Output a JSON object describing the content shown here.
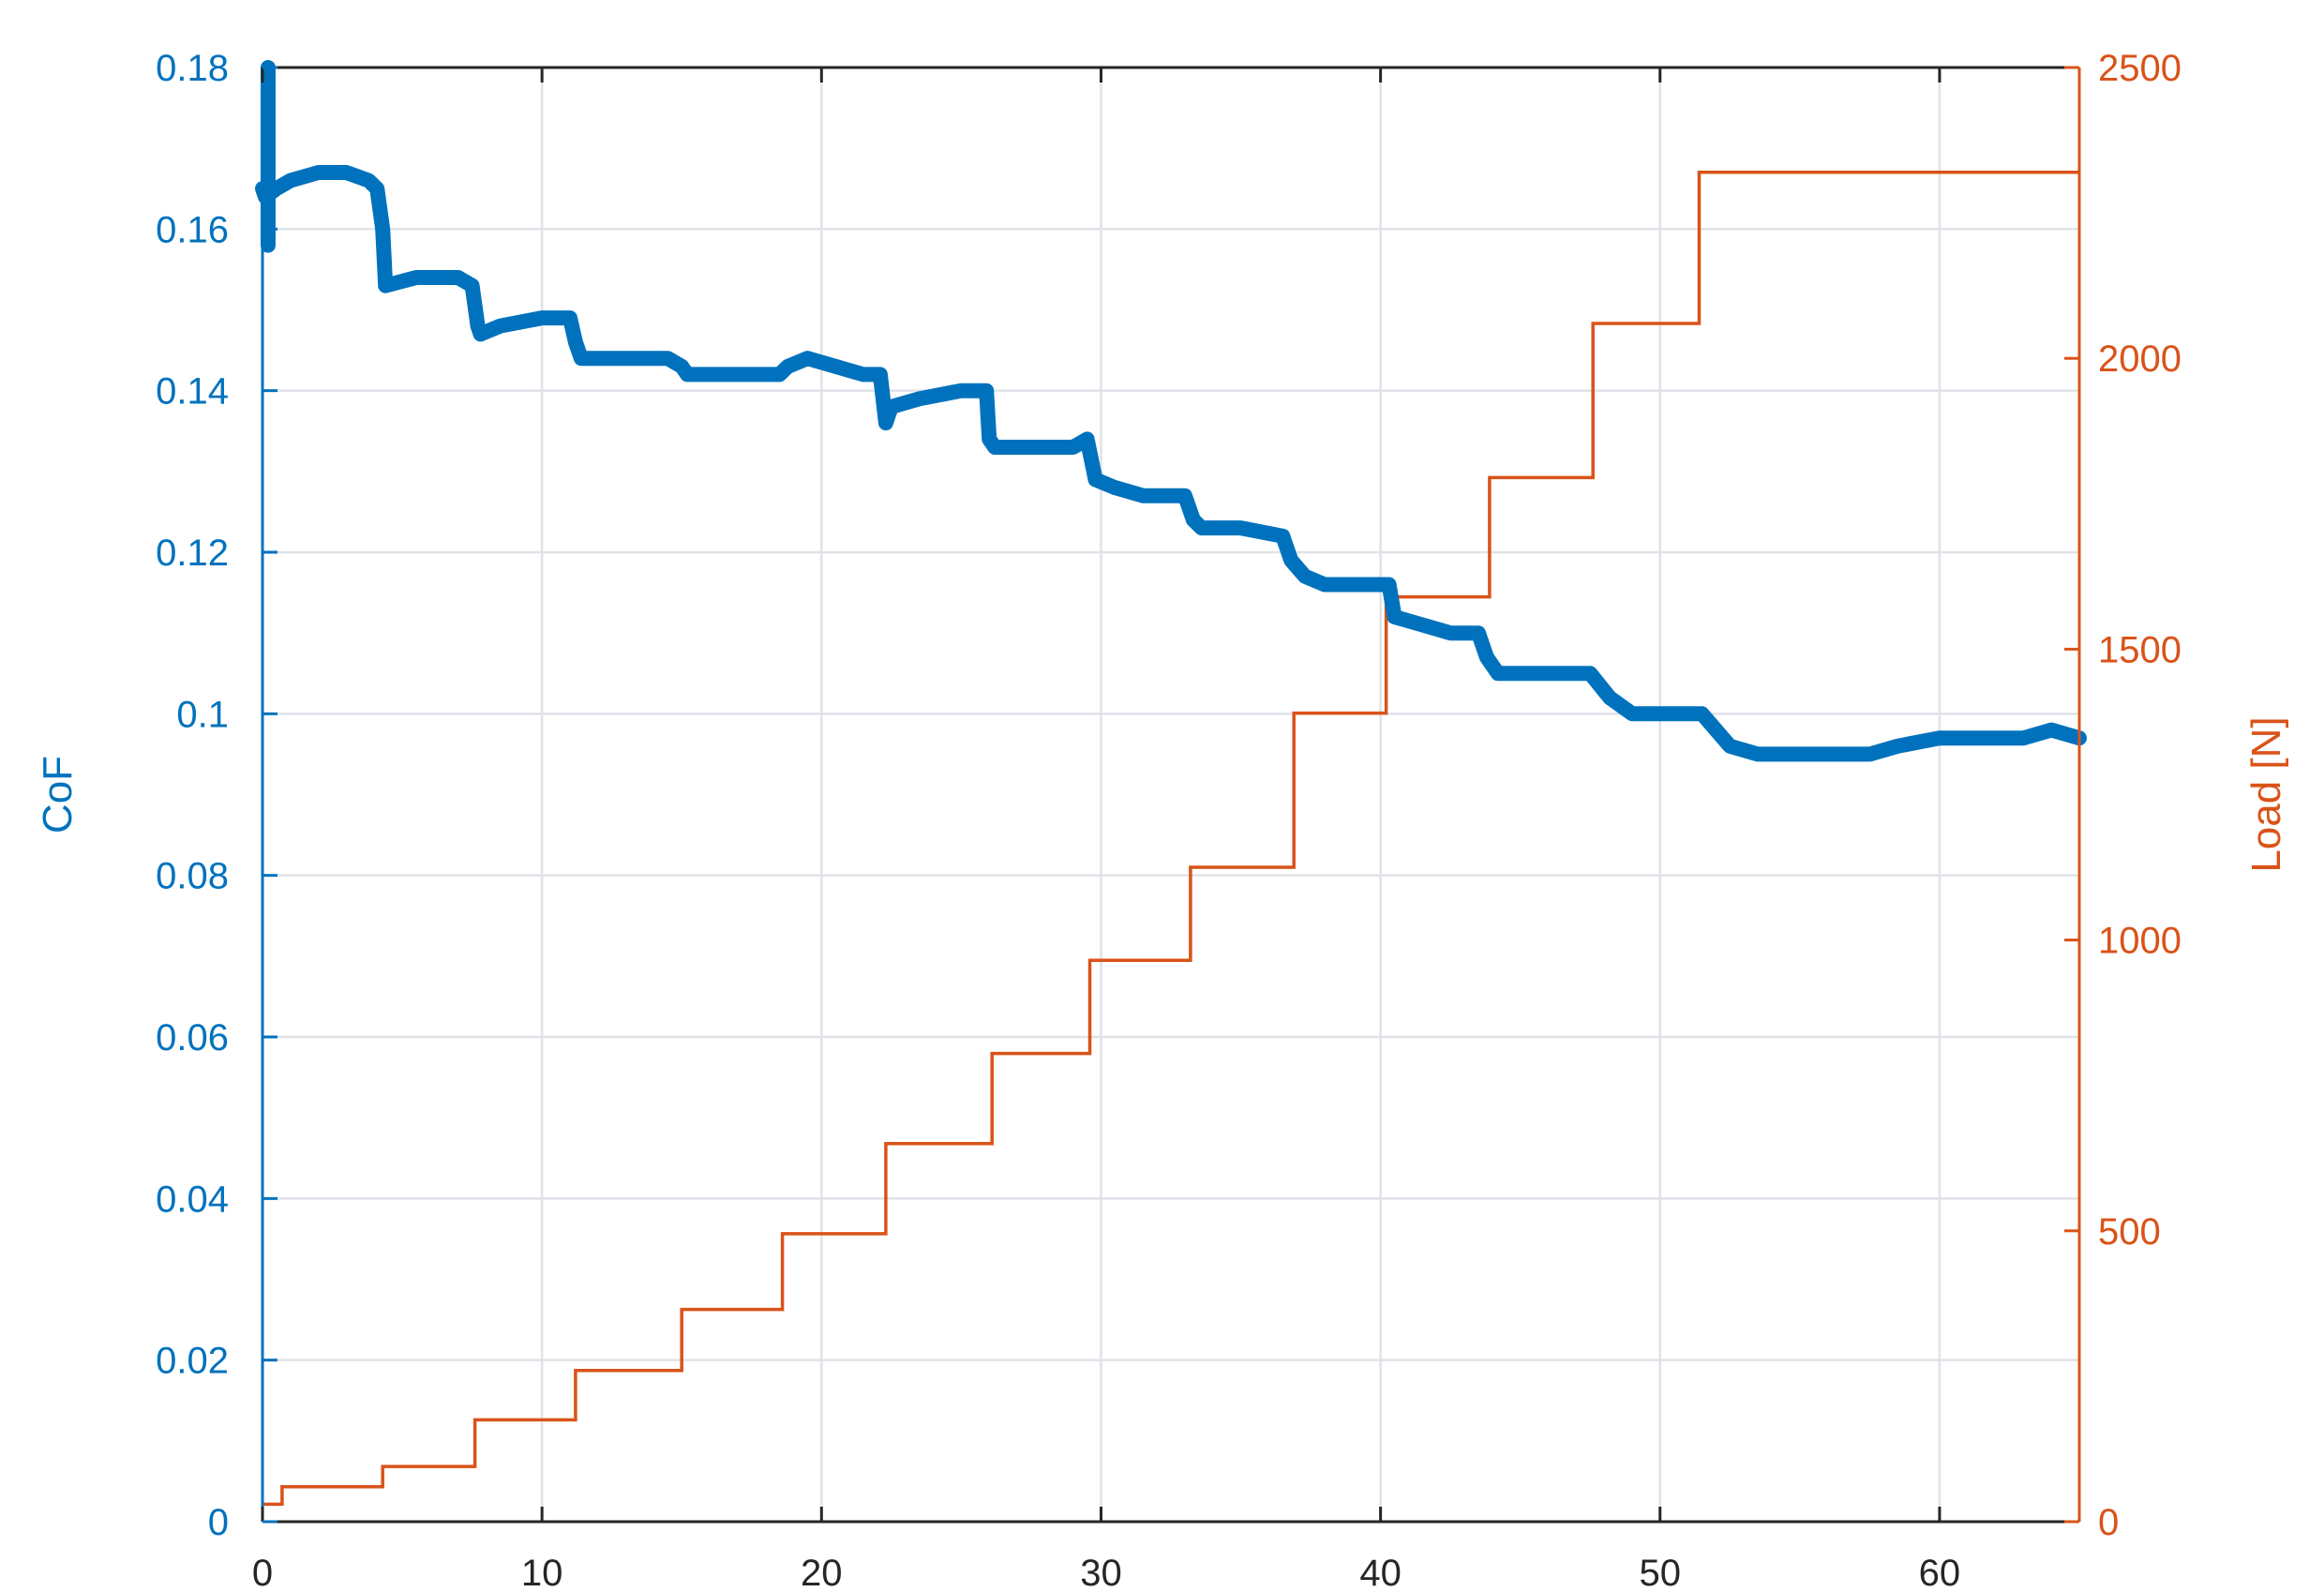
{
  "chart_data": {
    "type": "line",
    "x_ticks": [
      "0",
      "10",
      "20",
      "30",
      "40",
      "50",
      "60"
    ],
    "x_tick_values": [
      0,
      10,
      20,
      30,
      40,
      50,
      60
    ],
    "xlim": [
      0,
      65
    ],
    "grid": true,
    "left_axis": {
      "label": "CoF",
      "color": "#0072BD",
      "ylim": [
        0,
        0.18
      ],
      "ticks": [
        "0",
        "0.02",
        "0.04",
        "0.06",
        "0.08",
        "0.1",
        "0.12",
        "0.14",
        "0.16",
        "0.18"
      ],
      "tick_values": [
        0,
        0.02,
        0.04,
        0.06,
        0.08,
        0.1,
        0.12,
        0.14,
        0.16,
        0.18
      ]
    },
    "right_axis": {
      "label": "Load [N]",
      "color": "#D95319",
      "ylim": [
        0,
        2500
      ],
      "ticks": [
        "0",
        "500",
        "1000",
        "1500",
        "2000",
        "2500"
      ],
      "tick_values": [
        0,
        500,
        1000,
        1500,
        2000,
        2500
      ]
    },
    "series": [
      {
        "axis": "left",
        "color": "#0072BD",
        "style": "thick-markers",
        "x": [
          0.0,
          0.1,
          0.5,
          1.0,
          2.0,
          3.0,
          3.8,
          4.1,
          4.3,
          4.4,
          5.5,
          7.0,
          7.5,
          7.7,
          7.8,
          8.5,
          10.0,
          11.0,
          11.2,
          11.4,
          12.5,
          14.5,
          15.0,
          15.2,
          17.0,
          18.5,
          18.8,
          19.5,
          20.5,
          21.5,
          22.1,
          22.3,
          22.5,
          23.5,
          25.0,
          25.9,
          26.0,
          26.2,
          27.5,
          29.0,
          29.5,
          29.8,
          30.5,
          31.5,
          33.0,
          33.3,
          33.6,
          35.0,
          36.5,
          36.8,
          37.3,
          38.0,
          39.5,
          40.3,
          40.5,
          41.5,
          42.5,
          43.5,
          43.8,
          44.2,
          45.5,
          47.5,
          48.2,
          49.0,
          51.0,
          51.5,
          52.5,
          53.5,
          55.0,
          56.5,
          57.5,
          58.5,
          60.0,
          61.5,
          63.0,
          64.0,
          65.0
        ],
        "y": [
          0.165,
          0.164,
          0.165,
          0.166,
          0.167,
          0.167,
          0.166,
          0.165,
          0.16,
          0.153,
          0.154,
          0.154,
          0.153,
          0.148,
          0.147,
          0.148,
          0.149,
          0.149,
          0.146,
          0.144,
          0.144,
          0.144,
          0.143,
          0.142,
          0.142,
          0.142,
          0.143,
          0.144,
          0.143,
          0.142,
          0.142,
          0.136,
          0.138,
          0.139,
          0.14,
          0.14,
          0.134,
          0.133,
          0.133,
          0.133,
          0.134,
          0.129,
          0.128,
          0.127,
          0.127,
          0.124,
          0.123,
          0.123,
          0.122,
          0.119,
          0.117,
          0.116,
          0.116,
          0.116,
          0.112,
          0.111,
          0.11,
          0.11,
          0.107,
          0.105,
          0.105,
          0.105,
          0.102,
          0.1,
          0.1,
          0.1,
          0.096,
          0.095,
          0.095,
          0.095,
          0.095,
          0.096,
          0.097,
          0.097,
          0.097,
          0.098,
          0.097
        ]
      },
      {
        "axis": "right",
        "color": "#D95319",
        "style": "step",
        "x": [
          0.0,
          0.7,
          4.3,
          7.6,
          11.2,
          15.0,
          18.6,
          22.3,
          26.1,
          29.6,
          33.2,
          36.9,
          40.2,
          43.9,
          47.6,
          51.4,
          65.0
        ],
        "y": [
          30,
          60,
          95,
          175,
          260,
          365,
          495,
          650,
          805,
          965,
          1125,
          1390,
          1590,
          1795,
          2060,
          2320,
          2320
        ]
      }
    ]
  }
}
